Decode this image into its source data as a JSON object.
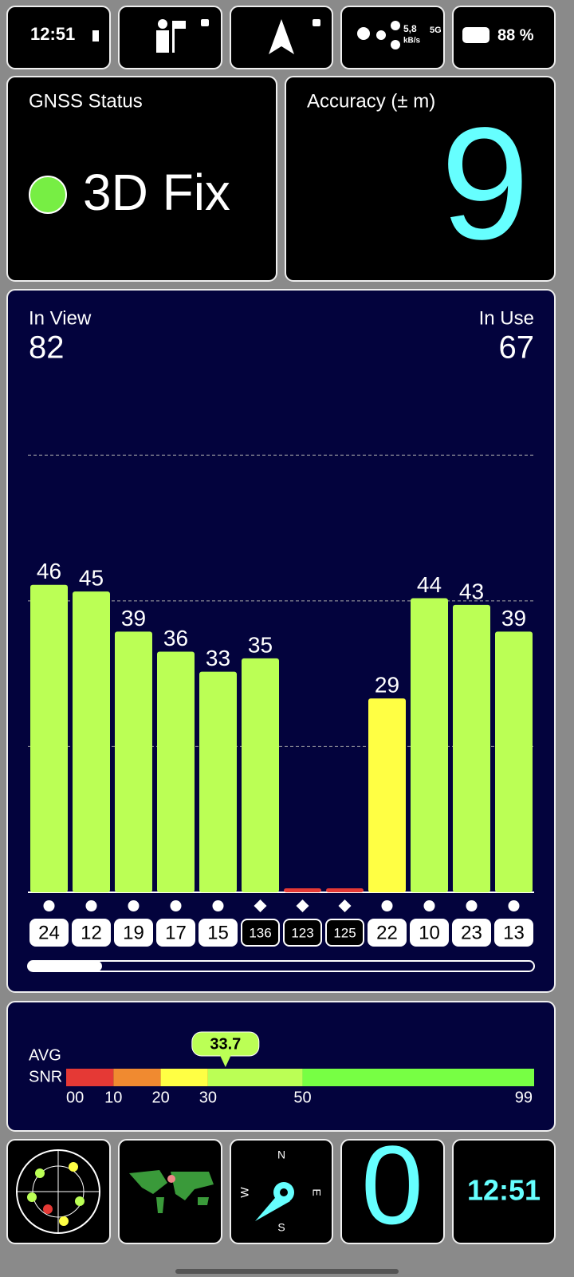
{
  "status_bar": {
    "time": "12:51",
    "speed": "5,8",
    "speed_unit": "kB/s",
    "network": "5G",
    "battery": "88 %"
  },
  "gnss_status": {
    "title": "GNSS Status",
    "fix": "3D Fix"
  },
  "accuracy": {
    "title": "Accuracy (± m)",
    "value": 9
  },
  "satellites": {
    "in_view_label": "In View",
    "in_view": 82,
    "in_use_label": "In Use",
    "in_use": 67
  },
  "snr_chart": {
    "type": "bar",
    "ids": [
      "24",
      "12",
      "19",
      "17",
      "15",
      "136",
      "123",
      "125",
      "22",
      "10",
      "23",
      "13"
    ],
    "values": [
      46,
      45,
      39,
      36,
      33,
      35,
      0.6,
      0.6,
      29,
      44,
      43,
      39
    ],
    "value_labels": [
      "46",
      "45",
      "39",
      "36",
      "33",
      "35",
      null,
      null,
      "29",
      "44",
      "43",
      "39"
    ],
    "colors": [
      "#bbff55",
      "#bbff55",
      "#bbff55",
      "#bbff55",
      "#bbff55",
      "#bbff55",
      "#e53935",
      "#e53935",
      "#ffff44",
      "#bbff55",
      "#bbff55",
      "#bbff55"
    ],
    "markers": [
      "circle",
      "circle",
      "circle",
      "circle",
      "circle",
      "diamond",
      "diamond",
      "diamond",
      "circle",
      "circle",
      "circle",
      "circle"
    ],
    "in_use": [
      true,
      true,
      true,
      true,
      true,
      false,
      false,
      false,
      true,
      true,
      true,
      true
    ],
    "ylim": [
      0,
      80
    ],
    "yticks": [
      21.8,
      43.6,
      65.4
    ],
    "grid": true
  },
  "avg_snr": {
    "label_1": "AVG",
    "label_2": "SNR",
    "value": 33.7,
    "xlim": [
      0,
      99
    ],
    "scale": [
      {
        "value": 0,
        "label": "00"
      },
      10,
      20,
      30,
      50,
      99
    ],
    "segment_colors": [
      "#e53935",
      "#f08a30",
      "#ffff44",
      "#bbff55",
      "#77ff44"
    ]
  },
  "bottom_bar": {
    "compass": [
      "N",
      "E",
      "S",
      "W"
    ],
    "count": 0,
    "time": "12:51"
  }
}
